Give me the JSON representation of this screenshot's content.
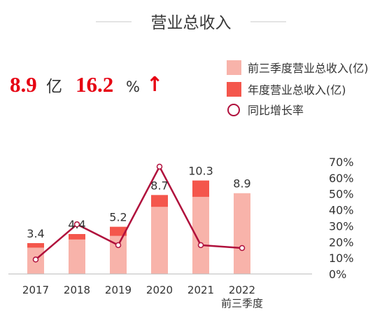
{
  "header": {
    "title": "营业总收入"
  },
  "highlight": {
    "amount": "8.9",
    "amount_unit": "亿",
    "growth": "16.2",
    "growth_unit": "%",
    "trend_arrow": "↑"
  },
  "colors": {
    "nine_month": "#f8b3aa",
    "annual": "#f4564c",
    "line": "#b0103c",
    "highlight": "#e60012",
    "axis": "#b9b9b9",
    "title_rule": "#c9c9c9"
  },
  "chart_data": {
    "type": "bar",
    "categories": [
      [
        "2017"
      ],
      [
        "2018"
      ],
      [
        "2019"
      ],
      [
        "2020"
      ],
      [
        "2021"
      ],
      [
        "2022",
        "前三季度"
      ]
    ],
    "series": [
      {
        "name": "前三季度营业总收入(亿)",
        "type": "bar",
        "axis": "left",
        "values": [
          2.9,
          3.8,
          4.2,
          7.4,
          8.5,
          8.9
        ]
      },
      {
        "name": "年度营业总收入(亿)",
        "type": "bar",
        "axis": "left",
        "values": [
          3.4,
          4.4,
          5.2,
          8.7,
          10.3,
          null
        ]
      },
      {
        "name": "同比增长率",
        "type": "line",
        "axis": "right",
        "values": [
          0.09,
          0.31,
          0.18,
          0.67,
          0.18,
          0.162
        ]
      }
    ],
    "bar_labels": [
      "3.4",
      "4.4",
      "5.2",
      "8.7",
      "10.3",
      "8.9"
    ],
    "y_left_range": [
      0,
      13.5
    ],
    "y_right_range": [
      0,
      0.7
    ],
    "y_right_ticks": [
      "0%",
      "10%",
      "20%",
      "30%",
      "40%",
      "50%",
      "60%",
      "70%"
    ],
    "legend_position": "top-right",
    "grid": false
  }
}
